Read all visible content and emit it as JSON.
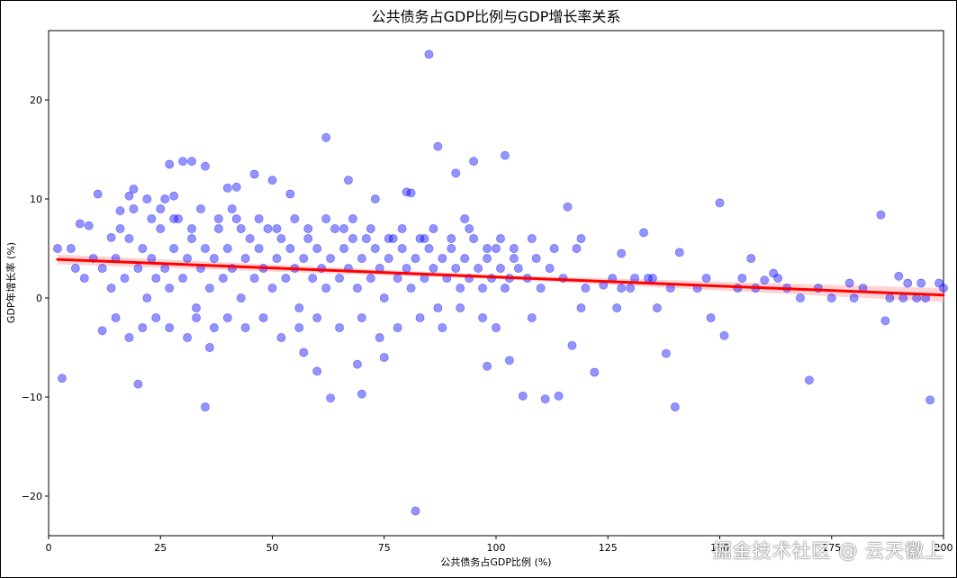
{
  "chart_data": {
    "type": "scatter",
    "title": "公共债务占GDP比例与GDP增长率关系",
    "xlabel": "公共债务占GDP比例 (%)",
    "ylabel": "GDP年增长率 (%)",
    "xlim": [
      0,
      200
    ],
    "ylim": [
      -24,
      27
    ],
    "xticks": [
      0,
      25,
      50,
      75,
      100,
      125,
      150,
      175,
      200
    ],
    "yticks": [
      -20,
      -10,
      0,
      10,
      20
    ],
    "grid": false,
    "colors": {
      "points": "#0000ff",
      "regression_line": "#ff0000",
      "confidence_band": "#ffb6b6"
    },
    "regression": {
      "x": [
        2,
        200
      ],
      "y": [
        3.9,
        0.3
      ],
      "confidence_halfwidth": [
        0.5,
        0.2,
        0.7
      ]
    },
    "series": [
      {
        "points": [
          [
            2,
            5
          ],
          [
            3,
            -8.1
          ],
          [
            7,
            7.5
          ],
          [
            9,
            7.3
          ],
          [
            11,
            10.5
          ],
          [
            12,
            -3.3
          ],
          [
            14,
            6.1
          ],
          [
            16,
            8.8
          ],
          [
            18,
            10.3
          ],
          [
            19,
            11
          ],
          [
            20,
            -8.7
          ],
          [
            22,
            10
          ],
          [
            26,
            10
          ],
          [
            27,
            13.5
          ],
          [
            28,
            10.3
          ],
          [
            30,
            13.8
          ],
          [
            32,
            13.8
          ],
          [
            35,
            13.3
          ],
          [
            35,
            -11
          ],
          [
            36,
            -5
          ],
          [
            40,
            11.1
          ],
          [
            42,
            11.2
          ],
          [
            46,
            12.5
          ],
          [
            50,
            11.9
          ],
          [
            54,
            10.5
          ],
          [
            57,
            -5.5
          ],
          [
            60,
            -7.4
          ],
          [
            62,
            16.2
          ],
          [
            63,
            -10.1
          ],
          [
            67,
            11.9
          ],
          [
            69,
            -6.7
          ],
          [
            70,
            -9.7
          ],
          [
            73,
            10
          ],
          [
            75,
            -6
          ],
          [
            80,
            10.7
          ],
          [
            81,
            10.6
          ],
          [
            82,
            -21.5
          ],
          [
            85,
            24.6
          ],
          [
            87,
            15.3
          ],
          [
            91,
            12.6
          ],
          [
            93,
            8
          ],
          [
            95,
            13.8
          ],
          [
            98,
            -6.9
          ],
          [
            102,
            14.4
          ],
          [
            103,
            -6.3
          ],
          [
            106,
            -9.9
          ],
          [
            111,
            -10.2
          ],
          [
            114,
            -9.9
          ],
          [
            117,
            -4.8
          ],
          [
            116,
            9.2
          ],
          [
            122,
            -7.5
          ],
          [
            124,
            1.3
          ],
          [
            128,
            4.5
          ],
          [
            131,
            2
          ],
          [
            133,
            6.6
          ],
          [
            138,
            -5.6
          ],
          [
            140,
            -11
          ],
          [
            141,
            4.6
          ],
          [
            150,
            9.6
          ],
          [
            151,
            -3.8
          ],
          [
            154,
            1
          ],
          [
            160,
            1.8
          ],
          [
            162,
            2.5
          ],
          [
            170,
            -8.3
          ],
          [
            175,
            0
          ],
          [
            179,
            1.5
          ],
          [
            186,
            8.4
          ],
          [
            187,
            -2.3
          ],
          [
            190,
            2.2
          ],
          [
            192,
            1.5
          ],
          [
            195,
            1.5
          ],
          [
            197,
            -10.3
          ],
          [
            199,
            1.5
          ],
          [
            200,
            1
          ],
          [
            5,
            5
          ],
          [
            6,
            3
          ],
          [
            8,
            2
          ],
          [
            10,
            4
          ],
          [
            12,
            3
          ],
          [
            14,
            1
          ],
          [
            15,
            4
          ],
          [
            17,
            2
          ],
          [
            18,
            6
          ],
          [
            20,
            3
          ],
          [
            21,
            5
          ],
          [
            22,
            0
          ],
          [
            23,
            4
          ],
          [
            24,
            2
          ],
          [
            25,
            7
          ],
          [
            26,
            3
          ],
          [
            27,
            1
          ],
          [
            28,
            5
          ],
          [
            29,
            8
          ],
          [
            30,
            2
          ],
          [
            31,
            4
          ],
          [
            32,
            6
          ],
          [
            33,
            -2
          ],
          [
            34,
            3
          ],
          [
            35,
            5
          ],
          [
            36,
            1
          ],
          [
            37,
            4
          ],
          [
            38,
            7
          ],
          [
            39,
            2
          ],
          [
            40,
            5
          ],
          [
            41,
            3
          ],
          [
            42,
            8
          ],
          [
            43,
            0
          ],
          [
            44,
            4
          ],
          [
            45,
            6
          ],
          [
            46,
            2
          ],
          [
            47,
            5
          ],
          [
            48,
            3
          ],
          [
            49,
            7
          ],
          [
            50,
            1
          ],
          [
            51,
            4
          ],
          [
            52,
            6
          ],
          [
            53,
            2
          ],
          [
            54,
            5
          ],
          [
            55,
            3
          ],
          [
            56,
            -1
          ],
          [
            57,
            4
          ],
          [
            58,
            6
          ],
          [
            59,
            2
          ],
          [
            60,
            5
          ],
          [
            61,
            3
          ],
          [
            62,
            1
          ],
          [
            63,
            4
          ],
          [
            64,
            7
          ],
          [
            65,
            2
          ],
          [
            66,
            5
          ],
          [
            67,
            3
          ],
          [
            68,
            8
          ],
          [
            69,
            1
          ],
          [
            70,
            4
          ],
          [
            71,
            6
          ],
          [
            72,
            2
          ],
          [
            73,
            5
          ],
          [
            74,
            3
          ],
          [
            75,
            0
          ],
          [
            76,
            4
          ],
          [
            77,
            6
          ],
          [
            78,
            2
          ],
          [
            79,
            5
          ],
          [
            80,
            3
          ],
          [
            81,
            1
          ],
          [
            82,
            4
          ],
          [
            83,
            6
          ],
          [
            84,
            2
          ],
          [
            85,
            5
          ],
          [
            86,
            3
          ],
          [
            87,
            -1
          ],
          [
            88,
            4
          ],
          [
            89,
            2
          ],
          [
            90,
            5
          ],
          [
            91,
            3
          ],
          [
            92,
            1
          ],
          [
            93,
            4
          ],
          [
            94,
            2
          ],
          [
            95,
            6
          ],
          [
            96,
            3
          ],
          [
            97,
            1
          ],
          [
            98,
            4
          ],
          [
            99,
            2
          ],
          [
            100,
            5
          ],
          [
            101,
            3
          ],
          [
            102,
            1
          ],
          [
            103,
            2
          ],
          [
            104,
            4
          ],
          [
            105,
            3
          ],
          [
            107,
            2
          ],
          [
            109,
            4
          ],
          [
            110,
            1
          ],
          [
            112,
            3
          ],
          [
            115,
            2
          ],
          [
            118,
            5
          ],
          [
            120,
            1
          ],
          [
            126,
            2
          ],
          [
            130,
            1
          ],
          [
            135,
            2
          ],
          [
            145,
            1
          ],
          [
            155,
            2
          ],
          [
            165,
            1
          ],
          [
            15,
            -2
          ],
          [
            18,
            -4
          ],
          [
            21,
            -3
          ],
          [
            24,
            -2
          ],
          [
            27,
            -3
          ],
          [
            31,
            -4
          ],
          [
            33,
            -1
          ],
          [
            37,
            -3
          ],
          [
            40,
            -2
          ],
          [
            44,
            -3
          ],
          [
            48,
            -2
          ],
          [
            52,
            -4
          ],
          [
            56,
            -3
          ],
          [
            60,
            -2
          ],
          [
            65,
            -3
          ],
          [
            70,
            -2
          ],
          [
            74,
            -4
          ],
          [
            78,
            -3
          ],
          [
            83,
            -2
          ],
          [
            88,
            -3
          ],
          [
            92,
            -1
          ],
          [
            97,
            -2
          ],
          [
            100,
            -3
          ],
          [
            108,
            -2
          ],
          [
            119,
            -1
          ],
          [
            127,
            -1
          ],
          [
            136,
            -1
          ],
          [
            148,
            -2
          ],
          [
            158,
            1
          ],
          [
            168,
            0
          ],
          [
            180,
            0
          ],
          [
            188,
            0
          ],
          [
            194,
            0
          ],
          [
            196,
            0
          ],
          [
            16,
            7
          ],
          [
            19,
            9
          ],
          [
            23,
            8
          ],
          [
            25,
            9
          ],
          [
            28,
            8
          ],
          [
            32,
            7
          ],
          [
            34,
            9
          ],
          [
            38,
            8
          ],
          [
            41,
            9
          ],
          [
            43,
            7
          ],
          [
            47,
            8
          ],
          [
            51,
            7
          ],
          [
            55,
            8
          ],
          [
            58,
            7
          ],
          [
            62,
            8
          ],
          [
            66,
            7
          ],
          [
            68,
            6
          ],
          [
            72,
            7
          ],
          [
            76,
            6
          ],
          [
            79,
            7
          ],
          [
            84,
            6
          ],
          [
            86,
            7
          ],
          [
            90,
            6
          ],
          [
            94,
            7
          ],
          [
            98,
            5
          ],
          [
            101,
            6
          ],
          [
            104,
            5
          ],
          [
            108,
            6
          ],
          [
            113,
            5
          ],
          [
            119,
            6
          ],
          [
            128,
            1
          ],
          [
            134,
            2
          ],
          [
            139,
            1
          ],
          [
            147,
            2
          ],
          [
            157,
            4
          ],
          [
            163,
            2
          ],
          [
            172,
            1
          ],
          [
            182,
            1
          ],
          [
            191,
            0
          ]
        ]
      }
    ],
    "annotations": [
      "掘金技术社区 @ 云天徽上"
    ]
  }
}
